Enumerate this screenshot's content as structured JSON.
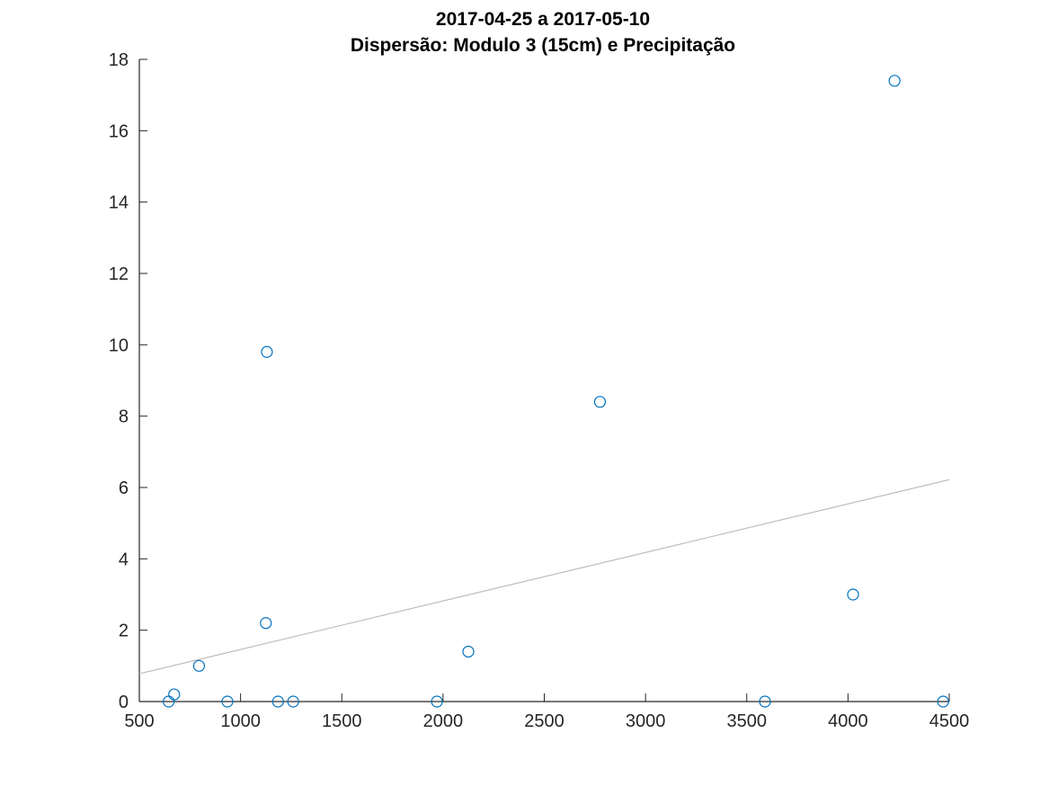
{
  "chart_data": {
    "type": "scatter",
    "title": "2017-04-25 a 2017-05-10",
    "subtitle": "Dispersão: Modulo 3 (15cm) e Precipitação",
    "xlabel": "",
    "ylabel": "",
    "xlim": [
      500,
      4500
    ],
    "ylim": [
      0,
      18
    ],
    "xticks": [
      500,
      1000,
      1500,
      2000,
      2500,
      3000,
      3500,
      4000,
      4500
    ],
    "yticks": [
      0,
      2,
      4,
      6,
      8,
      10,
      12,
      14,
      16,
      18
    ],
    "grid": false,
    "legend": "none",
    "colors": {
      "marker": "#0072bd",
      "fit_line": "#bdbdbd",
      "axis": "#262626"
    },
    "series": [
      {
        "marker": "circle-open",
        "points": [
          {
            "x": 645,
            "y": 0
          },
          {
            "x": 672,
            "y": 0.2
          },
          {
            "x": 795,
            "y": 1.0
          },
          {
            "x": 935,
            "y": 0
          },
          {
            "x": 1125,
            "y": 2.2
          },
          {
            "x": 1130,
            "y": 9.8
          },
          {
            "x": 1185,
            "y": 0
          },
          {
            "x": 1260,
            "y": 0
          },
          {
            "x": 1970,
            "y": 0
          },
          {
            "x": 2125,
            "y": 1.4
          },
          {
            "x": 2775,
            "y": 8.4
          },
          {
            "x": 3590,
            "y": 0
          },
          {
            "x": 4025,
            "y": 3.0
          },
          {
            "x": 4230,
            "y": 17.4
          },
          {
            "x": 4470,
            "y": 0
          }
        ]
      }
    ],
    "fit_line": {
      "x": [
        500,
        4500
      ],
      "y": [
        0.78,
        6.22
      ]
    }
  }
}
